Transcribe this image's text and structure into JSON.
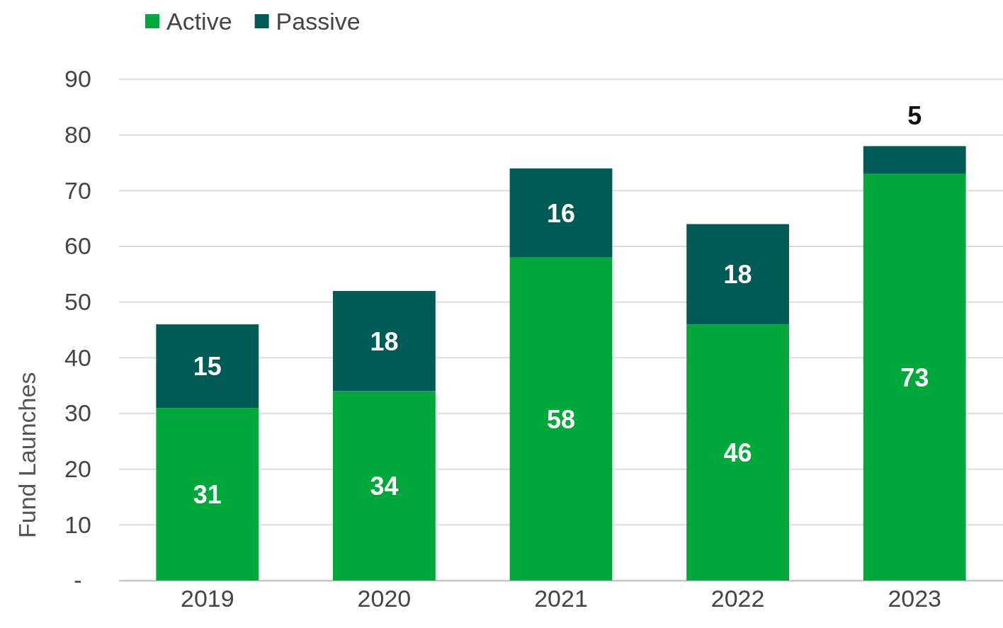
{
  "chart_data": {
    "type": "bar",
    "stacked": true,
    "ylabel": "Fund Launches",
    "categories": [
      "2019",
      "2020",
      "2021",
      "2022",
      "2023"
    ],
    "series": [
      {
        "name": "Active",
        "color": "#00a83c",
        "values": [
          31,
          34,
          58,
          46,
          73
        ]
      },
      {
        "name": "Passive",
        "color": "#005a55",
        "values": [
          15,
          18,
          16,
          18,
          5
        ]
      }
    ],
    "ylim": [
      0,
      90
    ],
    "yticks": [
      {
        "value": 0,
        "label": "-"
      },
      10,
      20,
      30,
      40,
      50,
      60,
      70,
      80,
      90
    ],
    "grid": "y",
    "legend": "top left",
    "data_labels": true
  }
}
